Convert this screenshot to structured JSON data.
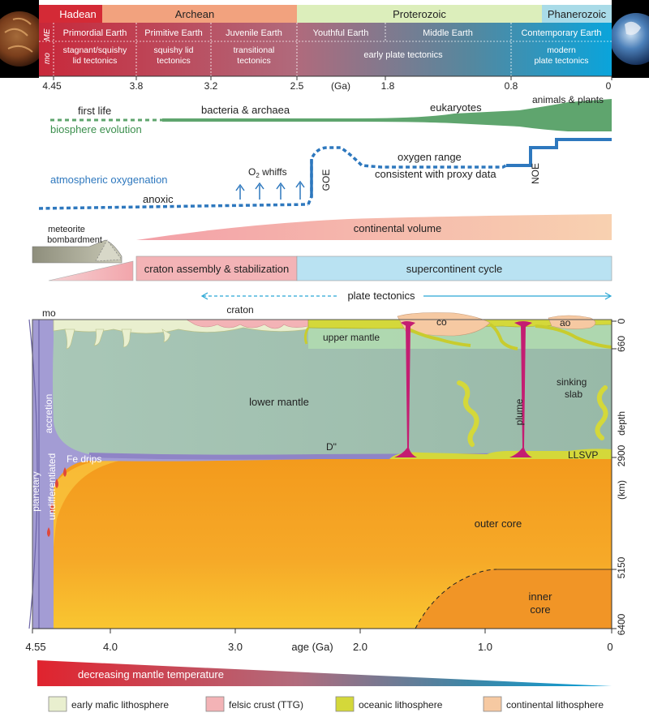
{
  "eons": {
    "hadean": "Hadean",
    "archean": "Archean",
    "proterozoic": "Proterozoic",
    "phanerozoic": "Phanerozoic"
  },
  "stages": {
    "primordial": "Primordial Earth",
    "primitive": "Primitive Earth",
    "juvenile": "Juvenile Earth",
    "youthful": "Youthful Earth",
    "middle": "Middle Earth",
    "contemporary": "Contemporary Earth"
  },
  "side_labels": {
    "me": "ME",
    "mo": "mo"
  },
  "tectonics": {
    "stagnant_1": "stagnant/squishy",
    "stagnant_2": "lid tectonics",
    "squishy_1": "squishy lid",
    "squishy_2": "tectonics",
    "transitional_1": "transitional",
    "transitional_2": "tectonics",
    "early_plate": "early plate tectonics",
    "modern_1": "modern",
    "modern_2": "plate tectonics"
  },
  "top_axis": {
    "ticks": [
      "4.45",
      "3.8",
      "3.2",
      "2.5",
      "1.8",
      "0.8",
      "0"
    ],
    "unit": "(Ga)"
  },
  "biosphere": {
    "first_life": "first life",
    "bacteria": "bacteria & archaea",
    "eukaryotes": "eukaryotes",
    "animals": "animals & plants",
    "label": "biosphere evolution"
  },
  "oxygen": {
    "label": "atmospheric oxygenation",
    "anoxic": "anoxic",
    "whiffs_o": "O",
    "whiffs_sub": "2",
    "whiffs_rest": " whiffs",
    "goe": "GOE",
    "range_1": "oxygen range",
    "range_2": "consistent with proxy data",
    "noe": "NOE"
  },
  "crust": {
    "meteorite_1": "meteorite",
    "meteorite_2": "bombardment",
    "continental_volume": "continental volume",
    "craton_assembly": "craton assembly & stabilization",
    "supercontinent": "supercontinent cycle",
    "plate_tectonics": "plate tectonics"
  },
  "section": {
    "mo": "mo",
    "craton": "craton",
    "co": "co",
    "ao": "ao",
    "upper_mantle": "upper mantle",
    "lower_mantle": "lower mantle",
    "d_double_prime": "D\"",
    "sinking_1": "sinking",
    "sinking_2": "slab",
    "plume": "plume",
    "llsvp": "LLSVP",
    "fe_drips": "Fe drips",
    "accretion": "accretion",
    "undifferentiated": "undifferentiated",
    "planetary": "planetary",
    "outer_core": "outer core",
    "inner_1": "inner",
    "inner_2": "core"
  },
  "depth_axis": {
    "ticks": [
      "0",
      "660",
      "2900",
      "5150",
      "6400"
    ],
    "label": "depth",
    "unit": "(km)"
  },
  "bottom_axis": {
    "ticks": [
      "4.55",
      "4.0",
      "3.0",
      "2.0",
      "1.0",
      "0"
    ],
    "label": "age (Ga)"
  },
  "mantle_temperature": "decreasing mantle temperature",
  "legend": [
    {
      "label": "early mafic lithosphere",
      "color": "#e9efcf"
    },
    {
      "label": "felsic crust (TTG)",
      "color": "#f3b3b6"
    },
    {
      "label": "oceanic lithosphere",
      "color": "#d4d83a"
    },
    {
      "label": "continental lithosphere",
      "color": "#f6c9a2"
    }
  ],
  "colors": {
    "hadean": "#d42a36",
    "archean": "#f2a27e",
    "proterozoic": "#dceebb",
    "phanerozoic": "#a9dbe8",
    "biosphere": "#5fa56e",
    "oxygen": "#2e78be",
    "mantle": "#9fbfae",
    "upper_mantle": "#b2dcb0",
    "core_outer": "#f5a623",
    "core_inner": "#f08c1e",
    "magma_ocean": "#9e95cf",
    "plume": "#c41d72"
  }
}
